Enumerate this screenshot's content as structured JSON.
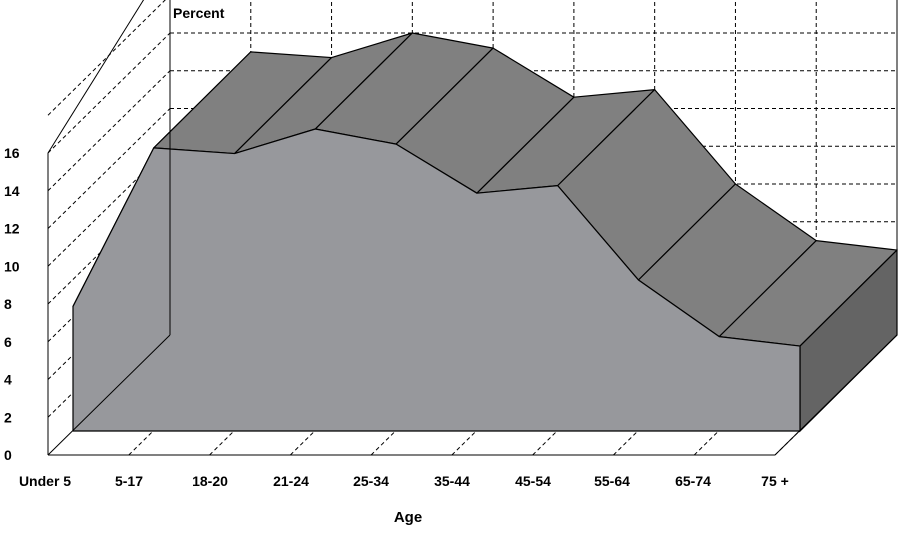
{
  "chart_data": {
    "type": "area",
    "title": "",
    "ylabel": "Percent",
    "xlabel": "Age",
    "categories": [
      "Under 5",
      "5-17",
      "18-20",
      "21-24",
      "25-34",
      "35-44",
      "45-54",
      "55-64",
      "65-74",
      "75 +"
    ],
    "series": [
      {
        "values": [
          6.6,
          15.0,
          14.7,
          16.0,
          15.2,
          12.6,
          13.0,
          8.0,
          5.0,
          4.5
        ]
      }
    ],
    "y_ticks": [
      0,
      2,
      4,
      6,
      8,
      10,
      12,
      14,
      16
    ],
    "ylim": [
      0,
      16
    ],
    "grid": true,
    "three_d": true,
    "colors": {
      "front": "#97989c",
      "top": "#808080",
      "side": "#646464",
      "grid": "#000000"
    }
  }
}
